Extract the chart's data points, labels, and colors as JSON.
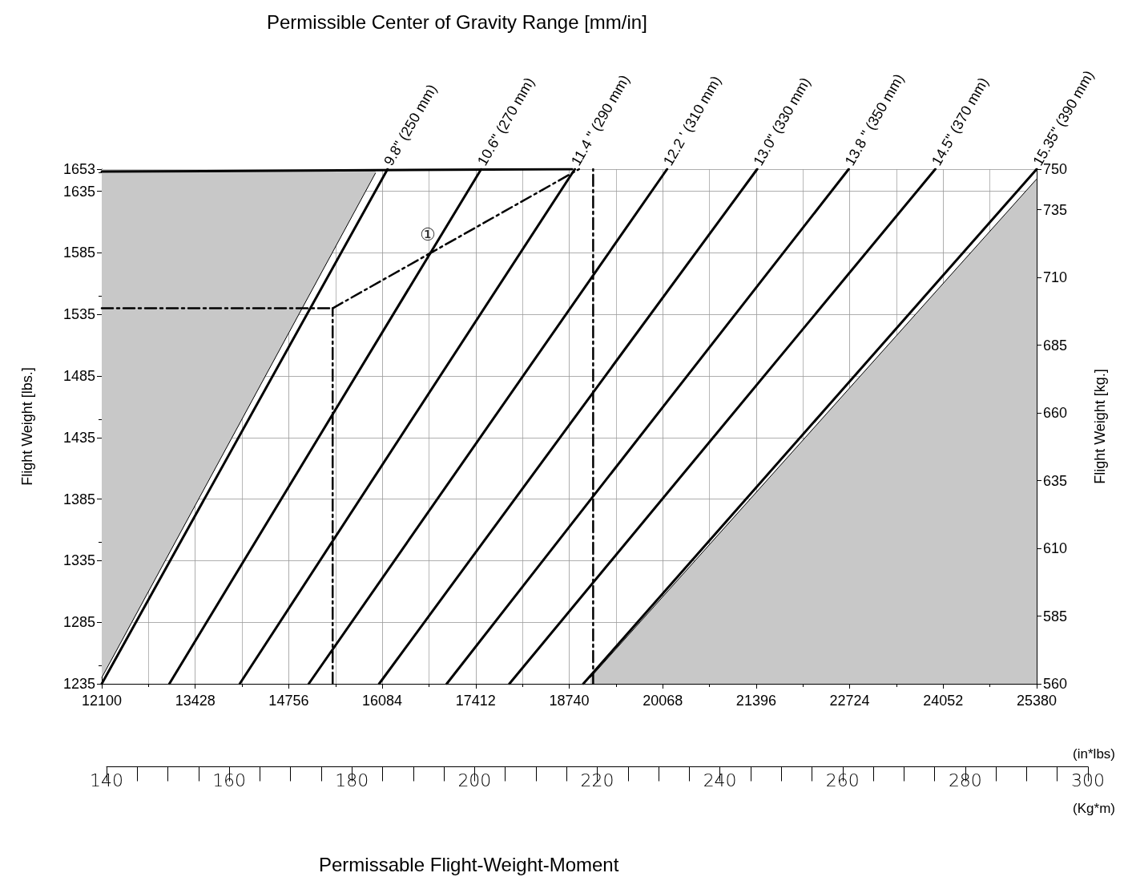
{
  "chart_data": {
    "type": "line",
    "title": "Permissible Center of Gravity Range [mm/in]",
    "xlabel": "(in*lbs)",
    "ylabel": "Flight Weight [lbs.]",
    "y2label": "Flight Weight [kg.]",
    "x2label": "(Kg*m)",
    "xlim": [
      12100,
      25380
    ],
    "xticks": [
      12100,
      13428,
      14756,
      16084,
      17412,
      18740,
      20068,
      21396,
      22724,
      24052,
      25380
    ],
    "ylim": [
      1235,
      1653
    ],
    "yticks": [
      1235,
      1285,
      1335,
      1385,
      1435,
      1485,
      1535,
      1585,
      1635,
      1653
    ],
    "y2lim": [
      560,
      750
    ],
    "y2ticks": [
      560,
      585,
      610,
      635,
      660,
      685,
      710,
      735,
      750
    ],
    "x2lim": [
      140,
      300
    ],
    "x2ticks": [
      140,
      160,
      180,
      200,
      220,
      240,
      260,
      280,
      300
    ],
    "grid": true,
    "legend": false,
    "marker": "none",
    "line_style": "solid",
    "series": [
      {
        "type": "area",
        "color": "#c8c8c8",
        "x": [
          12100,
          15990
        ],
        "values": [
          1240,
          1650
        ]
      },
      {
        "type": "area",
        "color": "#c8c8c8",
        "x": [
          19040,
          25380
        ],
        "values": [
          1240,
          1645
        ]
      },
      {
        "name": "9.8\" (250 mm)",
        "color": "#000000",
        "x": [
          12100,
          16160
        ],
        "values": [
          1235,
          1653
        ]
      },
      {
        "name": "10.6\" (270 mm)",
        "color": "#000000",
        "x": [
          13060,
          17490
        ],
        "values": [
          1235,
          1653
        ]
      },
      {
        "name": "11.4 \" (290 mm)",
        "color": "#000000",
        "x": [
          14060,
          18820
        ],
        "values": [
          1235,
          1653
        ]
      },
      {
        "name": "12.2 ' (310 mm)",
        "color": "#000000",
        "x": [
          15040,
          20130
        ],
        "values": [
          1235,
          1653
        ]
      },
      {
        "name": "13.0\" (330 mm)",
        "color": "#000000",
        "x": [
          16040,
          21410
        ],
        "values": [
          1235,
          1653
        ]
      },
      {
        "name": "13.8 \" (350 mm)",
        "color": "#000000",
        "x": [
          17000,
          22710
        ],
        "values": [
          1235,
          1653
        ]
      },
      {
        "name": "14.5\" (370 mm)",
        "color": "#000000",
        "x": [
          17890,
          23940
        ],
        "values": [
          1235,
          1653
        ]
      },
      {
        "name": "15.35\" (390 mm)",
        "color": "#000000",
        "x": [
          18940,
          25380
        ],
        "values": [
          1235,
          1653
        ]
      },
      {
        "color": "#000000",
        "x": [
          12100,
          18780
        ],
        "values": [
          1651,
          1653
        ]
      },
      {
        "color": "#000000",
        "line_style": "dashed",
        "x": [
          12100,
          15380
        ],
        "values": [
          1540,
          1540
        ]
      },
      {
        "color": "#000000",
        "line_style": "dashed",
        "x": [
          15380,
          15380
        ],
        "values": [
          1235,
          1540
        ]
      },
      {
        "color": "#000000",
        "line_style": "dashed",
        "x": [
          15380,
          18880
        ],
        "values": [
          1540,
          1653
        ]
      },
      {
        "color": "#000000",
        "line_style": "dashed",
        "x": [
          19080,
          19080
        ],
        "values": [
          1235,
          1653
        ]
      }
    ],
    "annotations": [
      "①",
      "Permissable Flight-Weight-Moment"
    ]
  }
}
